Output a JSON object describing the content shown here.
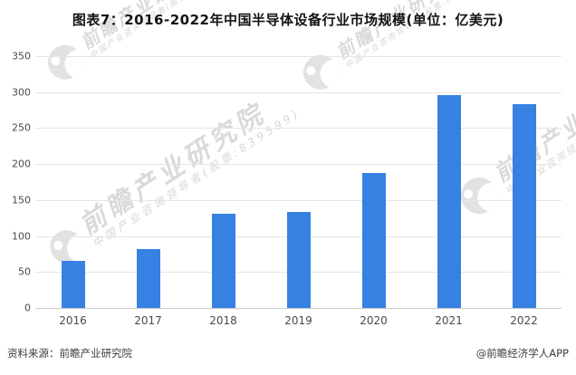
{
  "title": "图表7：2016-2022年中国半导体设备行业市场规模(单位：亿美元)",
  "footer": {
    "source": "资料来源：前瞻产业研究院",
    "credit": "@前瞻经济学人APP"
  },
  "watermark": {
    "brand": "前瞻产业研究院",
    "tagline": "中国产业咨询领导者(股票:839599)"
  },
  "colors": {
    "bar": "#3781e3",
    "gridline": "#e5e5e5",
    "axis_line": "#c9c9c9",
    "axis_text": "#4a4a4a",
    "title_text": "#141414",
    "watermark": "#b6b6b6"
  },
  "chart_data": {
    "type": "bar",
    "title": "图表7：2016-2022年中国半导体设备行业市场规模(单位：亿美元)",
    "unit": "亿美元",
    "categories": [
      "2016",
      "2017",
      "2018",
      "2019",
      "2020",
      "2021",
      "2022"
    ],
    "values": [
      65,
      82,
      131,
      134,
      187,
      296,
      283
    ],
    "xlabel": "",
    "ylabel": "",
    "ylim": [
      0,
      350
    ],
    "yticks": [
      0,
      50,
      100,
      150,
      200,
      250,
      300,
      350
    ],
    "grid": true,
    "legend": null,
    "bar_color": "#3781e3"
  }
}
